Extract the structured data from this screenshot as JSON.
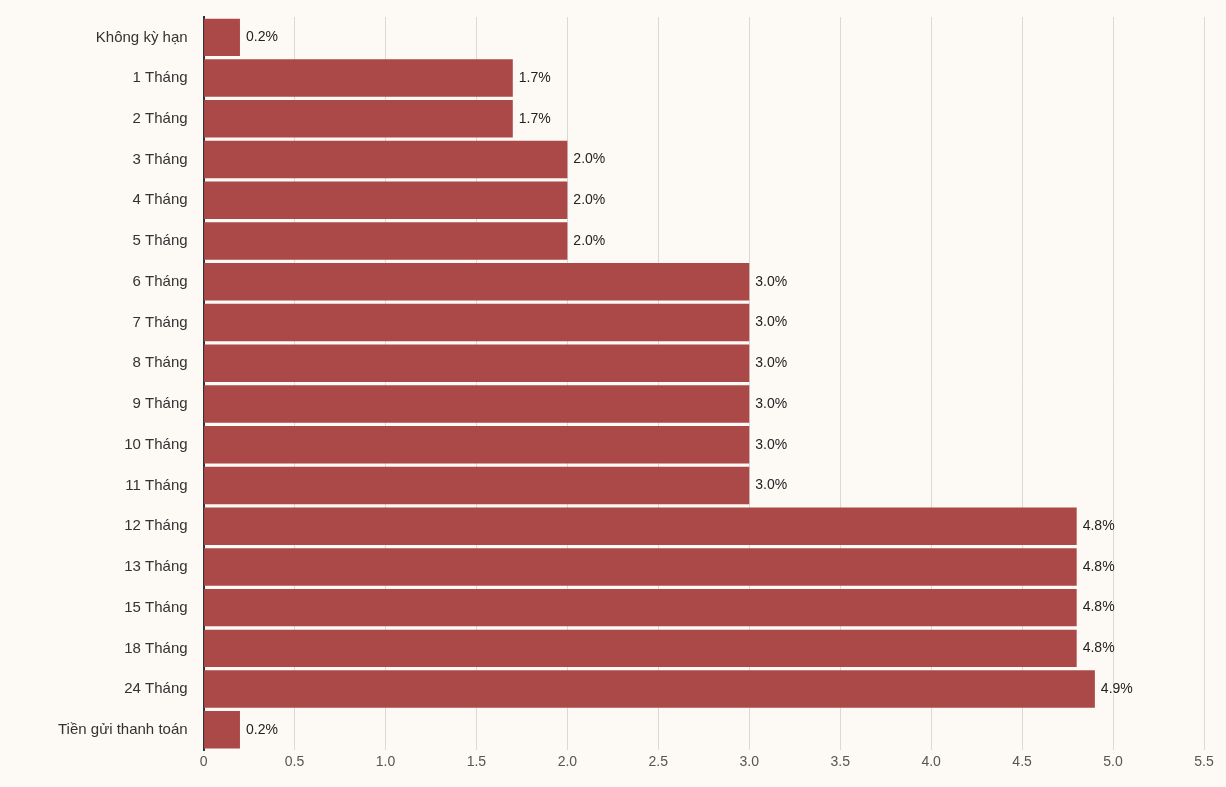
{
  "chart_data": {
    "type": "bar",
    "orientation": "horizontal",
    "categories": [
      "Không kỳ hạn",
      "1 Tháng",
      "2 Tháng",
      "3 Tháng",
      "4 Tháng",
      "5 Tháng",
      "6 Tháng",
      "7 Tháng",
      "8 Tháng",
      "9 Tháng",
      "10 Tháng",
      "11 Tháng",
      "12 Tháng",
      "13 Tháng",
      "15 Tháng",
      "18 Tháng",
      "24 Tháng",
      "Tiền gửi thanh toán"
    ],
    "values": [
      0.2,
      1.7,
      1.7,
      2.0,
      2.0,
      2.0,
      3.0,
      3.0,
      3.0,
      3.0,
      3.0,
      3.0,
      4.8,
      4.8,
      4.8,
      4.8,
      4.9,
      0.2
    ],
    "value_labels": [
      "0.2%",
      "1.7%",
      "1.7%",
      "2.0%",
      "2.0%",
      "2.0%",
      "3.0%",
      "3.0%",
      "3.0%",
      "3.0%",
      "3.0%",
      "3.0%",
      "4.8%",
      "4.8%",
      "4.8%",
      "4.8%",
      "4.9%",
      "0.2%"
    ],
    "color": "#ab4848",
    "xlim": [
      0,
      5.5
    ],
    "xticks": [
      0,
      0.5,
      {
        "value": 1,
        "label": "1.0"
      },
      1.5,
      {
        "value": 2,
        "label": "2.0"
      },
      2.5,
      {
        "value": 3,
        "label": "3.0"
      },
      3.5,
      {
        "value": 4,
        "label": "4.0"
      },
      4.5,
      {
        "value": 5,
        "label": "5.0"
      },
      5.5
    ],
    "grid": true,
    "data_labels": true
  }
}
